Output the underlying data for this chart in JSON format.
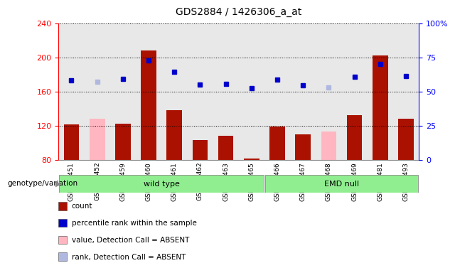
{
  "title": "GDS2884 / 1426306_a_at",
  "samples": [
    "GSM147451",
    "GSM147452",
    "GSM147459",
    "GSM147460",
    "GSM147461",
    "GSM147462",
    "GSM147463",
    "GSM147465",
    "GSM147466",
    "GSM147467",
    "GSM147468",
    "GSM147469",
    "GSM147481",
    "GSM147493"
  ],
  "counts": [
    121,
    0,
    122,
    208,
    138,
    103,
    108,
    81,
    119,
    110,
    0,
    132,
    202,
    128
  ],
  "counts_absent": [
    false,
    true,
    false,
    false,
    false,
    false,
    false,
    false,
    false,
    false,
    true,
    false,
    false,
    false
  ],
  "counts_absent_values": [
    0,
    128,
    0,
    0,
    0,
    0,
    0,
    0,
    0,
    0,
    113,
    0,
    0,
    0
  ],
  "percentile_ranks": [
    173,
    0,
    175,
    196,
    183,
    168,
    169,
    164,
    174,
    167,
    0,
    177,
    192,
    178
  ],
  "percentile_ranks_absent": [
    false,
    true,
    false,
    false,
    false,
    false,
    false,
    false,
    false,
    false,
    true,
    false,
    false,
    false
  ],
  "percentile_ranks_absent_values": [
    0,
    171,
    0,
    0,
    0,
    0,
    0,
    0,
    0,
    0,
    165,
    0,
    0,
    0
  ],
  "group_labels": [
    "wild type",
    "EMD null"
  ],
  "group_ranges": [
    [
      0,
      7
    ],
    [
      8,
      13
    ]
  ],
  "group_colors": [
    "#90ee90",
    "#90ee90"
  ],
  "bar_color": "#aa1100",
  "bar_absent_color": "#ffb6c1",
  "dot_color": "#0000cc",
  "dot_absent_color": "#b0b8e0",
  "ylim_left": [
    80,
    240
  ],
  "ylim_right": [
    0,
    100
  ],
  "yticks_left": [
    80,
    120,
    160,
    200,
    240
  ],
  "yticks_right": [
    0,
    25,
    50,
    75,
    100
  ],
  "ytick_labels_right": [
    "0",
    "25",
    "50",
    "75",
    "100%"
  ],
  "plot_bg_color": "#e8e8e8",
  "legend_items": [
    {
      "label": "count",
      "color": "#aa1100"
    },
    {
      "label": "percentile rank within the sample",
      "color": "#0000cc"
    },
    {
      "label": "value, Detection Call = ABSENT",
      "color": "#ffb6c1"
    },
    {
      "label": "rank, Detection Call = ABSENT",
      "color": "#b0b8e0"
    }
  ]
}
